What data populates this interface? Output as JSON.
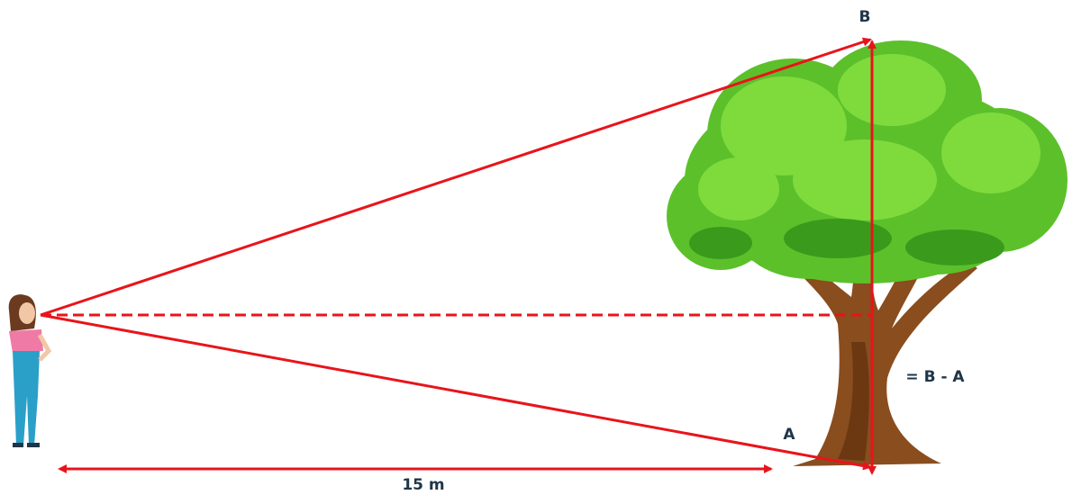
{
  "labels": {
    "top": "B",
    "bottom": "A",
    "height": "= B - A",
    "distance": "15 m"
  }
}
